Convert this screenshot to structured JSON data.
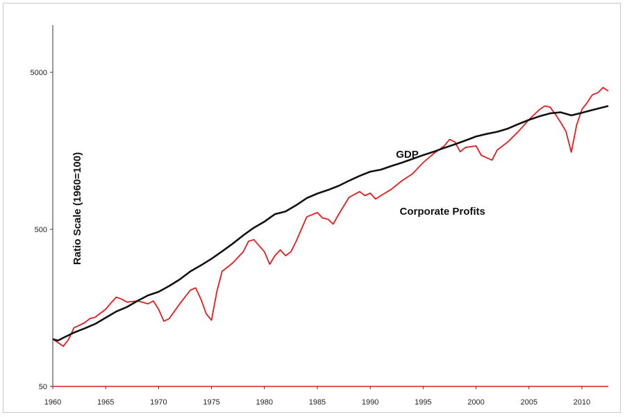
{
  "chart_data": {
    "type": "line",
    "title": "",
    "xlabel": "",
    "ylabel": "Ratio Scale (1960=100)",
    "y_scale": "log",
    "xlim": [
      1960,
      2012.5
    ],
    "ylim": [
      50,
      10000
    ],
    "x_ticks": [
      1960,
      1965,
      1970,
      1975,
      1980,
      1985,
      1990,
      1995,
      2000,
      2005,
      2010
    ],
    "y_ticks": [
      50,
      500,
      5000
    ],
    "grid": false,
    "legend": "none",
    "series": [
      {
        "name": "GDP",
        "color": "#111111",
        "x": [
          1960,
          1960.5,
          1961,
          1962,
          1963,
          1964,
          1965,
          1966,
          1967,
          1968,
          1969,
          1970,
          1971,
          1972,
          1973,
          1974,
          1975,
          1976,
          1977,
          1978,
          1979,
          1980,
          1981,
          1982,
          1983,
          1984,
          1985,
          1986,
          1987,
          1988,
          1989,
          1990,
          1991,
          1992,
          1993,
          1994,
          1995,
          1996,
          1997,
          1998,
          1999,
          2000,
          2001,
          2002,
          2003,
          2004,
          2005,
          2006,
          2007,
          2008,
          2009,
          2010,
          2011,
          2012.5
        ],
        "y": [
          100,
          98,
          102,
          110,
          117,
          125,
          137,
          150,
          160,
          175,
          190,
          200,
          218,
          240,
          270,
          295,
          325,
          362,
          405,
          458,
          512,
          560,
          625,
          650,
          712,
          790,
          845,
          890,
          945,
          1020,
          1095,
          1165,
          1200,
          1265,
          1330,
          1405,
          1485,
          1560,
          1650,
          1740,
          1840,
          1950,
          2025,
          2090,
          2190,
          2340,
          2490,
          2625,
          2740,
          2780,
          2660,
          2760,
          2880,
          3050
        ]
      },
      {
        "name": "Corporate Profits",
        "color": "#e41a1c",
        "x": [
          1960,
          1960.5,
          1961,
          1961.5,
          1962,
          1963,
          1963.5,
          1964,
          1965,
          1965.5,
          1966,
          1966.5,
          1967,
          1968,
          1969,
          1969.5,
          1970,
          1970.5,
          1971,
          1972,
          1973,
          1973.5,
          1974,
          1974.5,
          1975,
          1975.5,
          1976,
          1977,
          1978,
          1978.5,
          1979,
          1980,
          1980.5,
          1981,
          1981.5,
          1982,
          1982.5,
          1983,
          1984,
          1985,
          1985.5,
          1986,
          1986.5,
          1987,
          1988,
          1989,
          1989.5,
          1990,
          1990.5,
          1991,
          1992,
          1993,
          1994,
          1995,
          1996,
          1997,
          1997.5,
          1998,
          1998.5,
          1999,
          2000,
          2000.5,
          2001,
          2001.5,
          2002,
          2003,
          2004,
          2005,
          2006,
          2006.5,
          2007,
          2007.5,
          2008,
          2008.5,
          2009,
          2009.5,
          2010,
          2010.5,
          2011,
          2011.5,
          2012,
          2012.5
        ],
        "y": [
          100,
          95,
          90,
          100,
          118,
          127,
          135,
          138,
          155,
          170,
          185,
          180,
          172,
          175,
          168,
          175,
          155,
          130,
          135,
          168,
          205,
          212,
          180,
          145,
          132,
          200,
          270,
          305,
          360,
          420,
          430,
          360,
          300,
          340,
          370,
          340,
          360,
          420,
          600,
          640,
          590,
          580,
          540,
          620,
          800,
          870,
          820,
          850,
          780,
          820,
          900,
          1020,
          1130,
          1330,
          1520,
          1700,
          1870,
          1800,
          1560,
          1660,
          1700,
          1480,
          1430,
          1380,
          1600,
          1800,
          2100,
          2500,
          2900,
          3050,
          3000,
          2700,
          2400,
          2100,
          1550,
          2300,
          2900,
          3200,
          3600,
          3700,
          4000,
          3800
        ]
      }
    ],
    "annotations": [
      {
        "text": "GDP",
        "x": 1993.5,
        "y": 1430
      },
      {
        "text": "Corporate Profits",
        "x": 1992.5,
        "y": 620
      }
    ]
  }
}
